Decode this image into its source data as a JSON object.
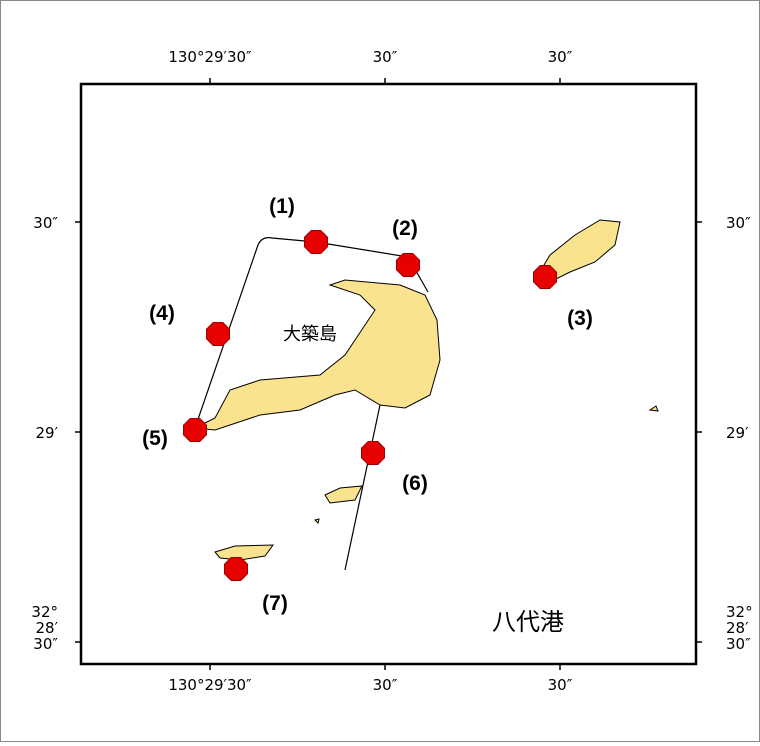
{
  "map": {
    "top_labels": [
      "130°29′30″",
      "30″",
      "30″"
    ],
    "bottom_labels": [
      "130°29′30″",
      "30″",
      "30″"
    ],
    "left_labels": [
      "30″",
      "29′",
      "32°",
      "28′",
      "30″"
    ],
    "right_labels": [
      "30″",
      "29′",
      "32°",
      "28′",
      "30″"
    ],
    "point_labels": [
      "(1)",
      "(2)",
      "(3)",
      "(4)",
      "(5)",
      "(6)",
      "(7)"
    ],
    "island_label": "大築島",
    "port_label": "八代港"
  }
}
